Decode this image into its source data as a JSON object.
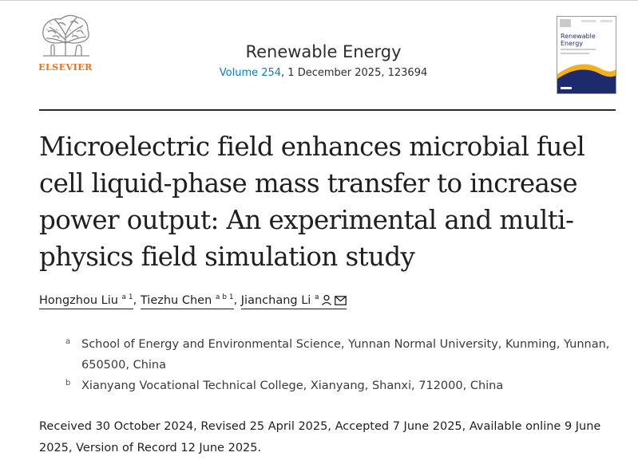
{
  "publisher": {
    "wordmark": "ELSEVIER",
    "logo_icon": "elsevier-tree-icon"
  },
  "journal": {
    "name": "Renewable Energy",
    "volume_link": "Volume 254",
    "issue_rest": ", 1 December 2025, 123694",
    "cover_title": "Renewable Energy"
  },
  "article": {
    "title": "Microelectric field enhances microbial fuel cell liquid-phase mass transfer to increase power output: An experimental and multi-physics field simulation study"
  },
  "authors": [
    {
      "name": "Hongzhou Liu",
      "sup": "a 1"
    },
    {
      "name": "Tiezhu Chen",
      "sup": "a b 1"
    },
    {
      "name": "Jianchang Li",
      "sup": "a"
    }
  ],
  "author_separator": ",",
  "affiliations": [
    {
      "mark": "a",
      "text": "School of Energy and Environmental Science, Yunnan Normal University, Kunming, Yunnan, 650500, China"
    },
    {
      "mark": "b",
      "text": "Xianyang Vocational Technical College, Xianyang, Shanxi, 712000, China"
    }
  ],
  "history": "Received 30 October 2024, Revised 25 April 2025, Accepted 7 June 2025, Available online 9 June 2025, Version of Record 12 June 2025.",
  "colors": {
    "elsevier_orange": "#e9711c",
    "link_blue": "#0c7dbb",
    "cover_navy": "#1d2a6b",
    "cover_gold": "#f2b01e"
  }
}
